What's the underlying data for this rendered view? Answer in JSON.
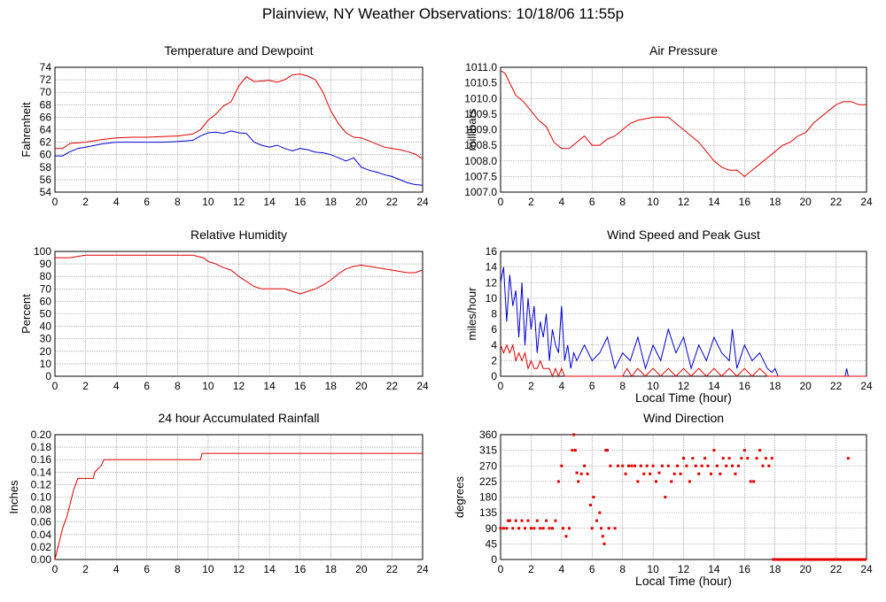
{
  "page": {
    "title": "Plainview, NY Weather Observations: 10/18/06 11:55p"
  },
  "colors": {
    "red": "#e00000",
    "blue": "#0000d0",
    "grid": "#808080"
  },
  "chart_data": [
    {
      "id": "temp",
      "type": "line",
      "title": "Temperature and Dewpoint",
      "ylabel": "Fahrenheit",
      "xlabel": "",
      "xlim": [
        0,
        24
      ],
      "ylim": [
        54,
        74
      ],
      "xticks": [
        "0",
        "2",
        "4",
        "6",
        "8",
        "10",
        "12",
        "14",
        "16",
        "18",
        "20",
        "22",
        "24"
      ],
      "yticks": [
        "54",
        "56",
        "58",
        "60",
        "62",
        "64",
        "66",
        "68",
        "70",
        "72",
        "74"
      ],
      "series": [
        {
          "color": "#e00000",
          "x": [
            0,
            0.5,
            1,
            2,
            3,
            4,
            5,
            6,
            7,
            8,
            9,
            9.5,
            10,
            10.5,
            11,
            11.5,
            12,
            12.5,
            13,
            13.5,
            14,
            14.5,
            15,
            15.5,
            16,
            16.5,
            17,
            17.5,
            18,
            18.5,
            19,
            19.5,
            20,
            20.5,
            21,
            21.5,
            22,
            22.5,
            23,
            23.5,
            24
          ],
          "y": [
            61,
            61,
            61.8,
            62,
            62.4,
            62.7,
            62.8,
            62.8,
            62.9,
            63,
            63.3,
            64,
            65.5,
            66.5,
            67.8,
            68.5,
            71,
            72.5,
            71.7,
            71.8,
            71.9,
            71.6,
            72,
            72.8,
            72.9,
            72.6,
            72,
            70,
            67,
            65,
            63.5,
            62.8,
            62.7,
            62.2,
            61.7,
            61.2,
            61,
            60.8,
            60.5,
            60.1,
            59.3
          ]
        },
        {
          "color": "#0000d0",
          "x": [
            0,
            0.5,
            1,
            1.5,
            2,
            3,
            4,
            5,
            6,
            7,
            8,
            9,
            9.5,
            10,
            10.5,
            11,
            11.5,
            12,
            12.5,
            13,
            13.5,
            14,
            14.5,
            15,
            15.5,
            16,
            16.5,
            17,
            17.5,
            18,
            18.5,
            19,
            19.5,
            20,
            20.5,
            21,
            21.5,
            22,
            22.5,
            23,
            23.5,
            24
          ],
          "y": [
            59.8,
            59.8,
            60.5,
            61,
            61.2,
            61.7,
            62,
            62,
            62,
            62,
            62.1,
            62.3,
            63,
            63.5,
            63.6,
            63.4,
            63.8,
            63.5,
            63.4,
            62,
            61.5,
            61.2,
            61.5,
            61,
            60.6,
            61,
            60.8,
            60.4,
            60.3,
            60,
            59.5,
            59,
            59.5,
            58,
            57.5,
            57.2,
            56.8,
            56.5,
            56,
            55.5,
            55.2,
            55.1
          ]
        }
      ]
    },
    {
      "id": "pressure",
      "type": "line",
      "title": "Air Pressure",
      "ylabel": "millibars",
      "xlabel": "",
      "xlim": [
        0,
        24
      ],
      "ylim": [
        1007.0,
        1011.0
      ],
      "xticks": [
        "0",
        "2",
        "4",
        "6",
        "8",
        "10",
        "12",
        "14",
        "16",
        "18",
        "20",
        "22",
        "24"
      ],
      "yticks": [
        "1007.0",
        "1007.5",
        "1008.0",
        "1008.5",
        "1009.0",
        "1009.5",
        "1010.0",
        "1010.5",
        "1011.0"
      ],
      "series": [
        {
          "color": "#e00000",
          "x": [
            0,
            0.3,
            0.6,
            1,
            1.5,
            2,
            2.5,
            3,
            3.5,
            4,
            4.5,
            5,
            5.5,
            6,
            6.5,
            7,
            7.5,
            8,
            8.5,
            9,
            10,
            11,
            11.5,
            12,
            12.5,
            13,
            13.5,
            14,
            14.5,
            15,
            15.5,
            16,
            16.5,
            17,
            17.5,
            18,
            18.5,
            19,
            19.5,
            20,
            20.5,
            21,
            21.5,
            22,
            22.5,
            23,
            23.5,
            24
          ],
          "y": [
            1010.9,
            1010.8,
            1010.5,
            1010.1,
            1009.9,
            1009.6,
            1009.3,
            1009.1,
            1008.6,
            1008.4,
            1008.4,
            1008.6,
            1008.8,
            1008.5,
            1008.5,
            1008.7,
            1008.8,
            1009.0,
            1009.2,
            1009.3,
            1009.4,
            1009.4,
            1009.2,
            1009.0,
            1008.8,
            1008.6,
            1008.3,
            1008.0,
            1007.8,
            1007.7,
            1007.7,
            1007.5,
            1007.7,
            1007.9,
            1008.1,
            1008.3,
            1008.5,
            1008.6,
            1008.8,
            1008.9,
            1009.2,
            1009.4,
            1009.6,
            1009.8,
            1009.9,
            1009.9,
            1009.8,
            1009.8
          ]
        }
      ]
    },
    {
      "id": "humidity",
      "type": "line",
      "title": "Relative Humidity",
      "ylabel": "Percent",
      "xlabel": "",
      "xlim": [
        0,
        24
      ],
      "ylim": [
        0,
        100
      ],
      "xticks": [
        "0",
        "2",
        "4",
        "6",
        "8",
        "10",
        "12",
        "14",
        "16",
        "18",
        "20",
        "22",
        "24"
      ],
      "yticks": [
        "0",
        "10",
        "20",
        "30",
        "40",
        "50",
        "60",
        "70",
        "80",
        "90",
        "100"
      ],
      "series": [
        {
          "color": "#e00000",
          "x": [
            0,
            1,
            1.5,
            2,
            3,
            4,
            5,
            6,
            7,
            8,
            9,
            9.3,
            9.7,
            10,
            10.5,
            11,
            11.5,
            12,
            12.5,
            13,
            13.5,
            14,
            14.5,
            15,
            15.5,
            16,
            16.5,
            17,
            17.5,
            18,
            18.5,
            19,
            19.5,
            20,
            20.5,
            21,
            21.5,
            22,
            22.5,
            23,
            23.5,
            24
          ],
          "y": [
            95,
            95,
            96,
            97,
            97,
            97,
            97,
            97,
            97,
            97,
            97,
            96,
            95,
            92,
            90,
            87,
            85,
            80,
            76,
            72,
            70,
            70,
            70,
            70,
            68,
            66,
            68,
            70,
            73,
            77,
            82,
            86,
            88,
            89,
            88,
            87,
            86,
            85,
            84,
            83,
            83,
            85
          ]
        }
      ]
    },
    {
      "id": "wind",
      "type": "line",
      "title": "Wind Speed and Peak Gust",
      "ylabel": "miles/hour",
      "xlabel": "Local Time (hour)",
      "xlim": [
        0,
        24
      ],
      "ylim": [
        0,
        16
      ],
      "xticks": [
        "0",
        "2",
        "4",
        "6",
        "8",
        "10",
        "12",
        "14",
        "16",
        "18",
        "20",
        "22",
        "24"
      ],
      "yticks": [
        "0",
        "2",
        "4",
        "6",
        "8",
        "10",
        "12",
        "14",
        "16"
      ],
      "series": [
        {
          "color": "#0000d0",
          "x": [
            0,
            0.2,
            0.4,
            0.6,
            0.8,
            1,
            1.2,
            1.4,
            1.6,
            1.8,
            2,
            2.2,
            2.4,
            2.6,
            2.8,
            3,
            3.2,
            3.4,
            3.6,
            3.8,
            4,
            4.2,
            4.4,
            4.6,
            4.8,
            5,
            5.5,
            6,
            6.5,
            7,
            7.5,
            8,
            8.5,
            9,
            9.5,
            10,
            10.5,
            11,
            11.5,
            12,
            12.5,
            13,
            13.5,
            14,
            14.5,
            15,
            15.2,
            15.5,
            16,
            16.5,
            17,
            17.5,
            17.8,
            18,
            18.2,
            20,
            22,
            22.6,
            22.7,
            22.8,
            24
          ],
          "y": [
            12,
            14,
            7,
            13,
            9,
            11,
            5,
            12,
            4,
            10,
            6,
            9,
            3,
            7,
            5,
            8,
            2,
            6,
            4,
            3,
            9,
            2,
            4,
            1,
            3,
            2,
            4,
            2,
            3,
            5,
            1,
            3,
            2,
            5,
            1,
            4,
            2,
            6,
            3,
            5,
            1,
            4,
            2,
            5,
            3,
            2,
            6,
            1,
            4,
            2,
            3,
            1,
            0.5,
            1,
            0,
            0,
            0,
            0,
            1,
            0,
            0
          ]
        },
        {
          "color": "#e00000",
          "x": [
            0,
            0.2,
            0.4,
            0.6,
            0.8,
            1,
            1.2,
            1.4,
            1.6,
            1.8,
            2,
            2.2,
            2.4,
            2.6,
            2.8,
            3,
            3.2,
            3.4,
            3.6,
            3.8,
            4,
            4.2,
            4.5,
            5,
            6,
            7,
            8,
            8.3,
            8.6,
            9,
            9.5,
            10,
            10.5,
            11,
            11.5,
            12,
            12.5,
            13,
            13.5,
            14,
            14.5,
            15,
            15.5,
            16,
            16.5,
            17,
            17.5,
            18,
            20,
            24
          ],
          "y": [
            4,
            3,
            4,
            3,
            4,
            2,
            3,
            2,
            3,
            1,
            2,
            1,
            1,
            2,
            1,
            1,
            1,
            0,
            1,
            0,
            1,
            0,
            0,
            0,
            0,
            0,
            0,
            1,
            0,
            1,
            0,
            1,
            0,
            1,
            0,
            1,
            0,
            1,
            0,
            1,
            0,
            1,
            0,
            1,
            0,
            1,
            0,
            0,
            0,
            0
          ]
        }
      ]
    },
    {
      "id": "rain",
      "type": "line",
      "title": "24 hour Accumulated Rainfall",
      "ylabel": "Inches",
      "xlabel": "",
      "xlim": [
        0,
        24
      ],
      "ylim": [
        0,
        0.2
      ],
      "xticks": [
        "0",
        "2",
        "4",
        "6",
        "8",
        "10",
        "12",
        "14",
        "16",
        "18",
        "20",
        "22",
        "24"
      ],
      "yticks": [
        "0.00",
        "0.02",
        "0.04",
        "0.06",
        "0.08",
        "0.10",
        "0.12",
        "0.14",
        "0.16",
        "0.18",
        "0.20"
      ],
      "series": [
        {
          "color": "#e00000",
          "x": [
            0,
            0.1,
            0.3,
            0.5,
            0.8,
            1.0,
            1.2,
            1.5,
            1.7,
            2.0,
            2.5,
            2.6,
            3.0,
            3.2,
            3.4,
            9.5,
            9.6,
            24
          ],
          "y": [
            0,
            0.01,
            0.03,
            0.05,
            0.07,
            0.09,
            0.11,
            0.13,
            0.13,
            0.13,
            0.13,
            0.14,
            0.15,
            0.16,
            0.16,
            0.16,
            0.17,
            0.17
          ]
        }
      ]
    },
    {
      "id": "direction",
      "type": "scatter",
      "title": "Wind Direction",
      "ylabel": "degrees",
      "xlabel": "Local Time (hour)",
      "xlim": [
        0,
        24
      ],
      "ylim": [
        0,
        360
      ],
      "xticks": [
        "0",
        "2",
        "4",
        "6",
        "8",
        "10",
        "12",
        "14",
        "16",
        "18",
        "20",
        "22",
        "24"
      ],
      "yticks": [
        "0",
        "45",
        "90",
        "135",
        "180",
        "225",
        "270",
        "315",
        "360"
      ],
      "series": [
        {
          "color": "#e00000",
          "x": [
            0,
            0.2,
            0.4,
            0.5,
            0.6,
            0.8,
            1,
            1.2,
            1.4,
            1.6,
            1.8,
            2,
            2.2,
            2.4,
            2.6,
            2.8,
            3,
            3.2,
            3.4,
            3.6,
            3.8,
            4,
            4.1,
            4.3,
            4.5,
            4.7,
            4.8,
            4.9,
            5,
            5.1,
            5.3,
            5.5,
            5.7,
            5.9,
            6,
            6.1,
            6.3,
            6.5,
            6.6,
            6.7,
            6.8,
            6.9,
            7,
            7.1,
            7.2,
            7.5,
            7.7,
            8,
            8.2,
            8.4,
            8.6,
            8.8,
            9,
            9.2,
            9.4,
            9.6,
            9.8,
            10,
            10.2,
            10.4,
            10.6,
            10.8,
            11,
            11.2,
            11.4,
            11.6,
            11.8,
            12,
            12.2,
            12.4,
            12.6,
            12.8,
            13,
            13.2,
            13.4,
            13.6,
            13.8,
            14,
            14.2,
            14.4,
            14.6,
            14.8,
            15,
            15.2,
            15.4,
            15.6,
            15.8,
            16,
            16.2,
            16.4,
            16.6,
            16.8,
            17,
            17.2,
            17.4,
            17.6,
            17.8,
            18,
            19,
            20,
            21,
            22,
            22.8,
            23,
            24
          ],
          "y": [
            90,
            90,
            90,
            112,
            112,
            90,
            112,
            90,
            112,
            90,
            112,
            90,
            90,
            112,
            90,
            90,
            112,
            90,
            90,
            112,
            225,
            270,
            90,
            67,
            90,
            315,
            360,
            315,
            250,
            225,
            247,
            270,
            247,
            157,
            90,
            180,
            112,
            135,
            90,
            67,
            45,
            315,
            315,
            90,
            270,
            90,
            270,
            270,
            247,
            270,
            270,
            270,
            225,
            270,
            247,
            270,
            247,
            270,
            225,
            250,
            270,
            180,
            270,
            225,
            247,
            270,
            247,
            292,
            270,
            225,
            292,
            270,
            247,
            270,
            292,
            270,
            247,
            315,
            270,
            247,
            292,
            270,
            292,
            270,
            247,
            270,
            292,
            315,
            292,
            225,
            225,
            292,
            315,
            270,
            292,
            270,
            292,
            0,
            0,
            0,
            0,
            0,
            292,
            0,
            0
          ]
        }
      ]
    }
  ]
}
